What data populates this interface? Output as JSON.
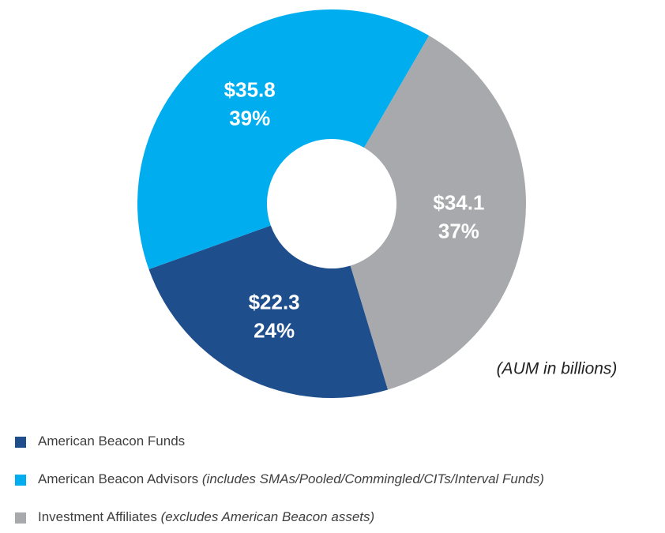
{
  "chart_data": {
    "type": "pie",
    "categories": [
      "American Beacon Funds",
      "American Beacon Advisors",
      "Investment Affiliates"
    ],
    "category_notes": [
      null,
      "(includes SMAs/Pooled/Commingled/CITs/Interval Funds)",
      "(excludes American Beacon assets)"
    ],
    "values": [
      22.3,
      35.8,
      34.1
    ],
    "value_labels": [
      "$22.3",
      "$35.8",
      "$34.1"
    ],
    "percents": [
      24,
      39,
      37
    ],
    "percent_labels": [
      "24%",
      "39%",
      "37%"
    ],
    "colors": [
      "#1f4e8c",
      "#00aeef",
      "#a7a9ac"
    ],
    "annotation": "(AUM in billions)",
    "donut": true
  }
}
